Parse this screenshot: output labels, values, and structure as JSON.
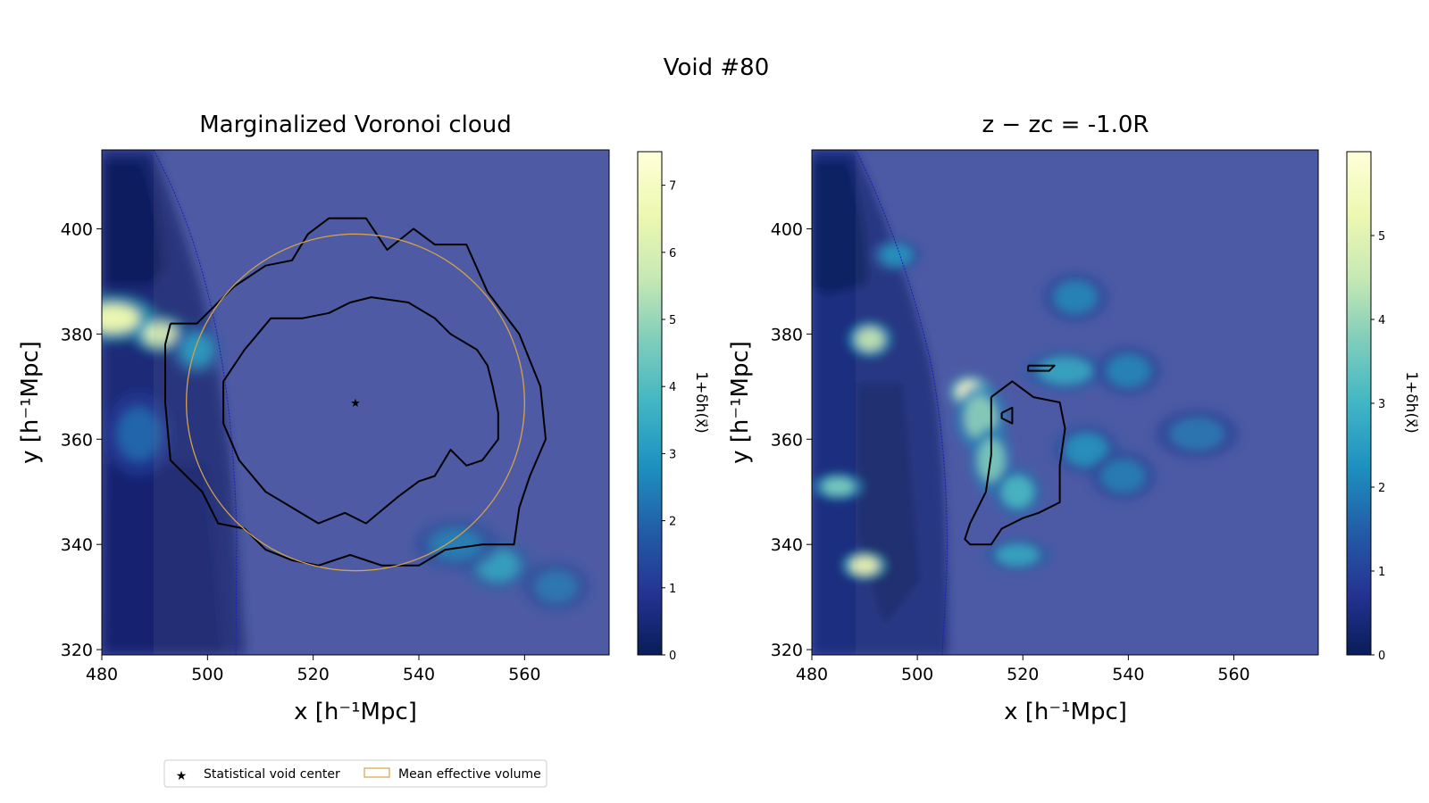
{
  "title": "Void #80",
  "colors": {
    "ylgnbu": [
      "#081d58",
      "#253494",
      "#225ea8",
      "#1d91c0",
      "#41b6c4",
      "#7fcdbb",
      "#c7e9b4",
      "#edf8b1",
      "#ffffd9"
    ],
    "contour": "#000000",
    "circle": "#d4a24a",
    "star": "#d4a24a",
    "boundary": "#1010c0",
    "bg_mid": "#4655a6"
  },
  "panels": [
    {
      "title": "Marginalized Voronoi cloud",
      "xlabel": "x [h⁻¹Mpc]",
      "ylabel": "y [h⁻¹Mpc]",
      "xlim": [
        480,
        576
      ],
      "ylim": [
        319,
        415
      ],
      "xticks": [
        "480",
        "500",
        "520",
        "540",
        "560"
      ],
      "yticks": [
        "320",
        "340",
        "360",
        "380",
        "400"
      ],
      "colorbar": {
        "label": "1+δh(x⃗)",
        "max": 7.5,
        "ticks": [
          "0",
          "1",
          "2",
          "3",
          "4",
          "5",
          "6",
          "7"
        ]
      }
    },
    {
      "title": "z − zc = -1.0R",
      "xlabel": "x [h⁻¹Mpc]",
      "ylabel": "y [h⁻¹Mpc]",
      "xlim": [
        480,
        576
      ],
      "ylim": [
        319,
        415
      ],
      "xticks": [
        "480",
        "500",
        "520",
        "540",
        "560"
      ],
      "yticks": [
        "320",
        "340",
        "360",
        "380",
        "400"
      ],
      "colorbar": {
        "label": "1+δh(x⃗)",
        "max": 6,
        "ticks": [
          "0",
          "1",
          "2",
          "3",
          "4",
          "5"
        ]
      }
    }
  ],
  "legend": {
    "star_label": "Statistical void center",
    "circle_label": "Mean effective volume"
  },
  "chart_data": [
    {
      "type": "heatmap",
      "title": "Marginalized Voronoi cloud",
      "xlabel": "x [h⁻¹Mpc]",
      "ylabel": "y [h⁻¹Mpc]",
      "xlim": [
        480,
        576
      ],
      "ylim": [
        319,
        415
      ],
      "colorbar_label": "1+δh(x⃗)",
      "colorbar_range": [
        0,
        7.5
      ],
      "void_center": {
        "x": 528,
        "y": 367
      },
      "mean_effective_circle": {
        "center_x": 528,
        "center_y": 367,
        "radius": 32
      },
      "dense_blobs": [
        {
          "x": 482,
          "y": 383,
          "value": 6.5,
          "sx": 5,
          "sy": 2.5
        },
        {
          "x": 491,
          "y": 380,
          "value": 6.0,
          "sx": 3,
          "sy": 2
        },
        {
          "x": 498,
          "y": 377,
          "value": 3.0,
          "sx": 3,
          "sy": 3
        },
        {
          "x": 555,
          "y": 336,
          "value": 3.2,
          "sx": 4,
          "sy": 3
        },
        {
          "x": 547,
          "y": 340,
          "value": 2.4,
          "sx": 5,
          "sy": 3
        },
        {
          "x": 566,
          "y": 332,
          "value": 2.3,
          "sx": 4,
          "sy": 3
        },
        {
          "x": 487,
          "y": 361,
          "value": 2.0,
          "sx": 4,
          "sy": 5
        }
      ],
      "contours": [
        [
          [
            493,
            382
          ],
          [
            498,
            382
          ],
          [
            501,
            385
          ],
          [
            505,
            389
          ],
          [
            511,
            393
          ],
          [
            516,
            394
          ],
          [
            519,
            399
          ],
          [
            523,
            402
          ],
          [
            530,
            402
          ],
          [
            534,
            396
          ],
          [
            539,
            400
          ],
          [
            543,
            397
          ],
          [
            549,
            397
          ],
          [
            553,
            388
          ],
          [
            559,
            380
          ],
          [
            563,
            370
          ],
          [
            564,
            360
          ],
          [
            561,
            353
          ],
          [
            559,
            347
          ],
          [
            558,
            340
          ],
          [
            552,
            340
          ],
          [
            545,
            339
          ],
          [
            540,
            336
          ],
          [
            533,
            336
          ],
          [
            527,
            338
          ],
          [
            521,
            336
          ],
          [
            516,
            337
          ],
          [
            511,
            339
          ],
          [
            507,
            343
          ],
          [
            502,
            344
          ],
          [
            499,
            350
          ],
          [
            493,
            356
          ],
          [
            492,
            367
          ],
          [
            492,
            378
          ],
          [
            493,
            382
          ]
        ],
        [
          [
            503,
            371
          ],
          [
            507,
            377
          ],
          [
            512,
            383
          ],
          [
            518,
            383
          ],
          [
            523,
            384
          ],
          [
            527,
            386
          ],
          [
            531,
            387
          ],
          [
            538,
            386
          ],
          [
            543,
            383
          ],
          [
            546,
            380
          ],
          [
            551,
            377
          ],
          [
            553,
            374
          ],
          [
            554,
            370
          ],
          [
            555,
            365
          ],
          [
            555,
            360
          ],
          [
            552,
            356
          ],
          [
            549,
            355
          ],
          [
            546,
            358
          ],
          [
            543,
            353
          ],
          [
            540,
            352
          ],
          [
            536,
            349
          ],
          [
            530,
            344
          ],
          [
            526,
            346
          ],
          [
            521,
            344
          ],
          [
            516,
            347
          ],
          [
            511,
            350
          ],
          [
            506,
            356
          ],
          [
            503,
            363
          ],
          [
            503,
            371
          ]
        ]
      ]
    },
    {
      "type": "heatmap",
      "title": "z − zc = -1.0R",
      "xlabel": "x [h⁻¹Mpc]",
      "ylabel": "y [h⁻¹Mpc]",
      "xlim": [
        480,
        576
      ],
      "ylim": [
        319,
        415
      ],
      "colorbar_label": "1+δh(x⃗)",
      "colorbar_range": [
        0,
        6
      ],
      "dense_blobs": [
        {
          "x": 510,
          "y": 369,
          "value": 5.8,
          "sx": 2.5,
          "sy": 2
        },
        {
          "x": 512,
          "y": 364,
          "value": 3.8,
          "sx": 3,
          "sy": 4
        },
        {
          "x": 514,
          "y": 356,
          "value": 3.6,
          "sx": 2.5,
          "sy": 4
        },
        {
          "x": 519,
          "y": 350,
          "value": 3.0,
          "sx": 3,
          "sy": 3
        },
        {
          "x": 491,
          "y": 379,
          "value": 4.4,
          "sx": 2.5,
          "sy": 2
        },
        {
          "x": 490,
          "y": 336,
          "value": 5.2,
          "sx": 2.5,
          "sy": 1.5
        },
        {
          "x": 485,
          "y": 351,
          "value": 3.6,
          "sx": 3,
          "sy": 1.5
        },
        {
          "x": 519,
          "y": 338,
          "value": 2.6,
          "sx": 4,
          "sy": 2
        },
        {
          "x": 528,
          "y": 373,
          "value": 2.6,
          "sx": 5,
          "sy": 2.5
        },
        {
          "x": 532,
          "y": 358,
          "value": 2.2,
          "sx": 4,
          "sy": 3
        },
        {
          "x": 496,
          "y": 395,
          "value": 2.2,
          "sx": 3,
          "sy": 2
        },
        {
          "x": 540,
          "y": 373,
          "value": 2.0,
          "sx": 4,
          "sy": 3
        },
        {
          "x": 530,
          "y": 387,
          "value": 2.0,
          "sx": 4,
          "sy": 3
        },
        {
          "x": 539,
          "y": 353,
          "value": 1.9,
          "sx": 4,
          "sy": 3
        },
        {
          "x": 553,
          "y": 361,
          "value": 1.8,
          "sx": 5,
          "sy": 3
        }
      ],
      "contours": [
        [
          [
            514,
            368
          ],
          [
            518,
            371
          ],
          [
            522,
            368
          ],
          [
            527,
            367
          ],
          [
            528,
            362
          ],
          [
            527,
            355
          ],
          [
            527,
            348
          ],
          [
            523,
            346
          ],
          [
            520,
            345
          ],
          [
            516,
            343
          ],
          [
            514,
            340
          ],
          [
            510,
            340
          ],
          [
            509,
            341
          ],
          [
            510,
            344
          ],
          [
            513,
            350
          ],
          [
            514,
            357
          ],
          [
            514,
            364
          ],
          [
            514,
            368
          ]
        ],
        [
          [
            516,
            365
          ],
          [
            518,
            366
          ],
          [
            518,
            363
          ],
          [
            516,
            364
          ],
          [
            516,
            365
          ]
        ],
        [
          [
            521,
            374
          ],
          [
            526,
            374
          ],
          [
            525,
            373
          ],
          [
            521,
            373
          ],
          [
            521,
            374
          ]
        ]
      ]
    }
  ]
}
